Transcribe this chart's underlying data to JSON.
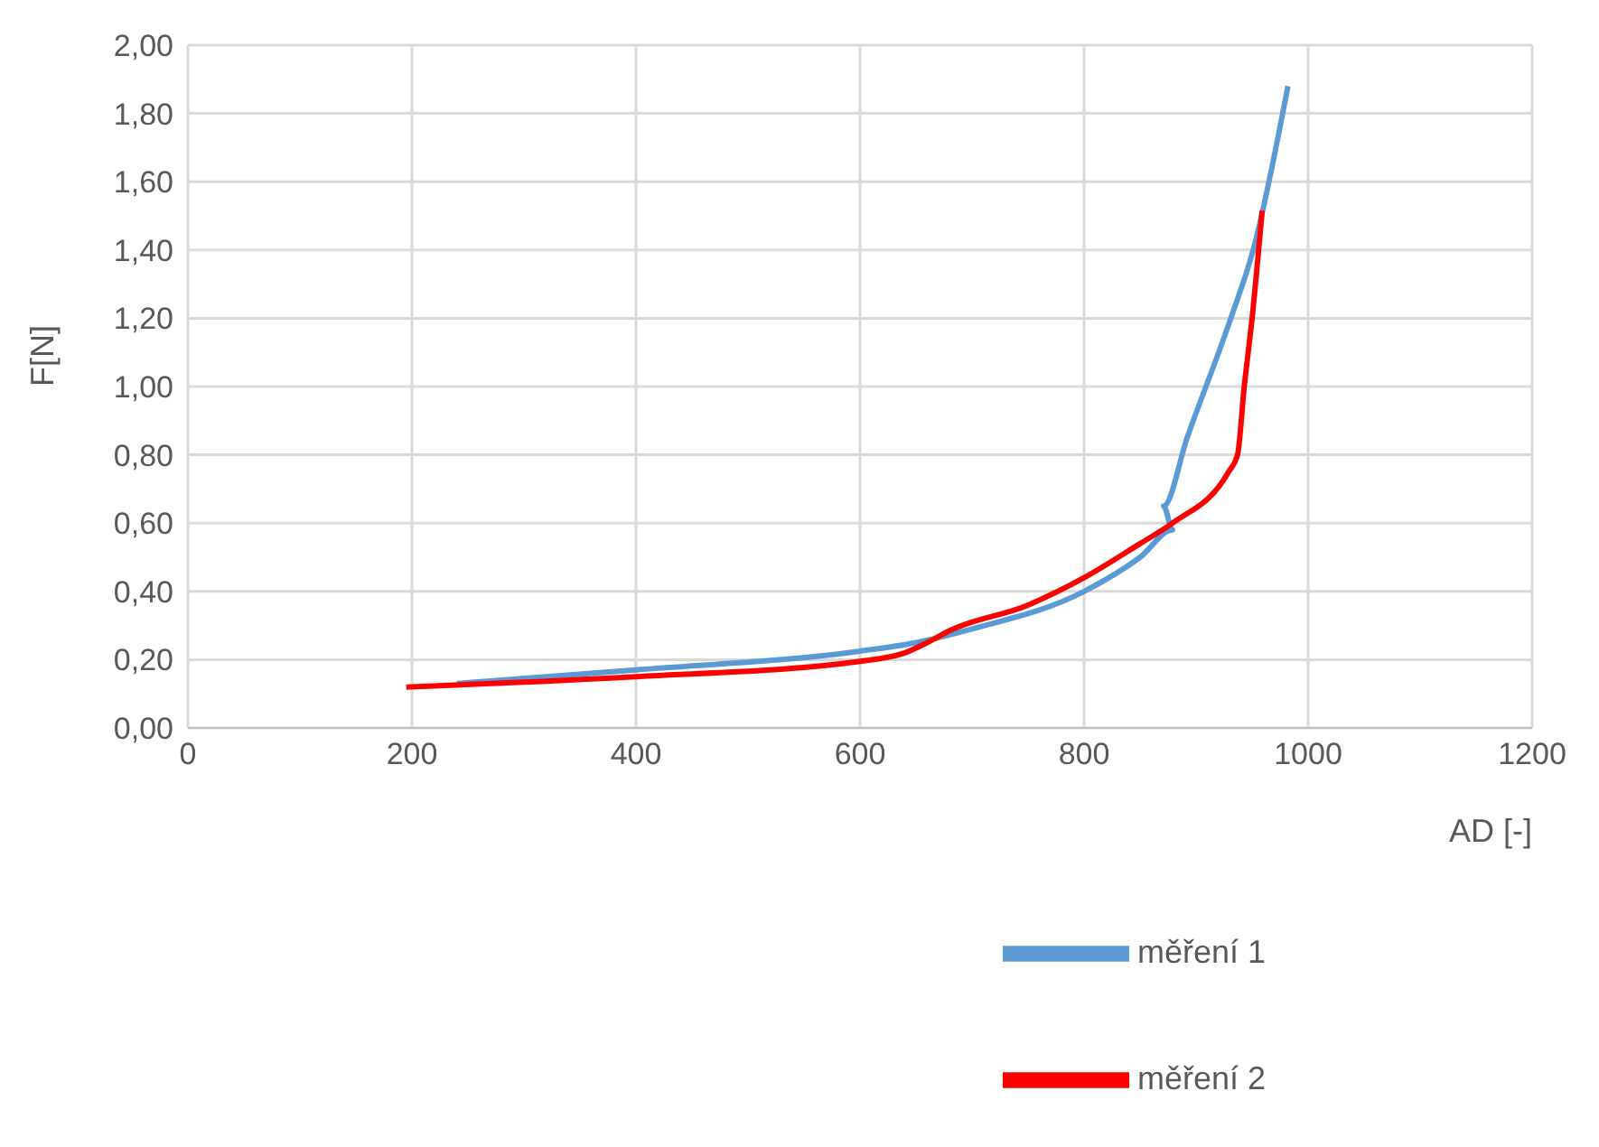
{
  "chart_data": {
    "type": "line",
    "xlabel": "AD [-]",
    "ylabel": "F[N]",
    "xlim": [
      0,
      1200
    ],
    "xticks": [
      0,
      200,
      400,
      600,
      800,
      1000,
      1200
    ],
    "ylim": [
      0,
      2
    ],
    "yticks": [
      {
        "value": 0,
        "label": "0,00"
      },
      {
        "value": 0.2,
        "label": "0,20"
      },
      {
        "value": 0.4,
        "label": "0,40"
      },
      {
        "value": 0.6,
        "label": "0,60"
      },
      {
        "value": 0.8,
        "label": "0,80"
      },
      {
        "value": 1,
        "label": "1,00"
      },
      {
        "value": 1.2,
        "label": "1,20"
      },
      {
        "value": 1.4,
        "label": "1,40"
      },
      {
        "value": 1.6,
        "label": "1,60"
      },
      {
        "value": 1.8,
        "label": "1,80"
      },
      {
        "value": 2,
        "label": "2,00"
      }
    ],
    "grid": true,
    "legend": "bottom",
    "marker": "none",
    "line_style": "solid",
    "series": [
      {
        "name": "měření 1",
        "color": "#5b9bd5",
        "x": [
          240,
          400,
          600,
          650,
          700,
          800,
          850,
          879,
          871,
          892,
          931,
          951,
          982
        ],
        "values": [
          0.13,
          0.17,
          0.225,
          0.25,
          0.29,
          0.4,
          0.5,
          0.58,
          0.65,
          0.85,
          1.2,
          1.4,
          1.88
        ]
      },
      {
        "name": "měření 2",
        "color": "#ff0000",
        "x": [
          195,
          400,
          600,
          640,
          660,
          680,
          750,
          800,
          850,
          879,
          929,
          937,
          943,
          950,
          959
        ],
        "values": [
          0.12,
          0.15,
          0.195,
          0.22,
          0.25,
          0.285,
          0.36,
          0.44,
          0.54,
          0.6,
          0.75,
          0.8,
          1.0,
          1.2,
          1.515
        ]
      }
    ]
  }
}
